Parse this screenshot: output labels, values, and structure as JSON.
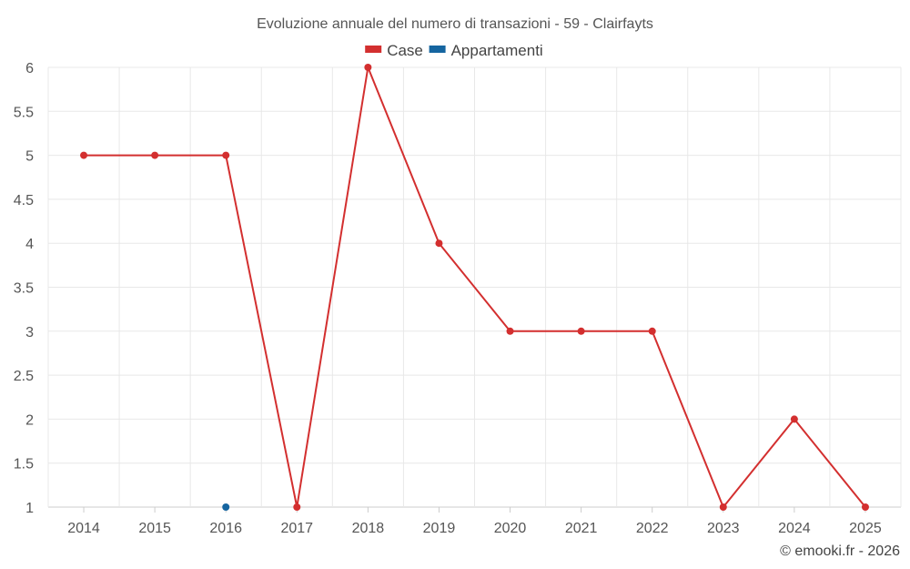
{
  "chart_data": {
    "type": "line",
    "title": "Evoluzione annuale del numero di transazioni - 59 - Clairfayts",
    "xlabel": "",
    "ylabel": "",
    "x": [
      "2014",
      "2015",
      "2016",
      "2017",
      "2018",
      "2019",
      "2020",
      "2021",
      "2022",
      "2023",
      "2024",
      "2025"
    ],
    "ylim": [
      1,
      6
    ],
    "yticks": [
      "1",
      "1.5",
      "2",
      "2.5",
      "3",
      "3.5",
      "4",
      "4.5",
      "5",
      "5.5",
      "6"
    ],
    "grid": true,
    "legend_position": "top-center",
    "series": [
      {
        "name": "Case",
        "color": "#d32f2f",
        "values": [
          5,
          5,
          5,
          1,
          6,
          4,
          3,
          3,
          3,
          1,
          2,
          1
        ]
      },
      {
        "name": "Appartamenti",
        "color": "#1565a0",
        "values": [
          null,
          null,
          1,
          null,
          null,
          null,
          null,
          null,
          null,
          null,
          null,
          null
        ]
      }
    ]
  },
  "credit": "© emooki.fr - 2026"
}
